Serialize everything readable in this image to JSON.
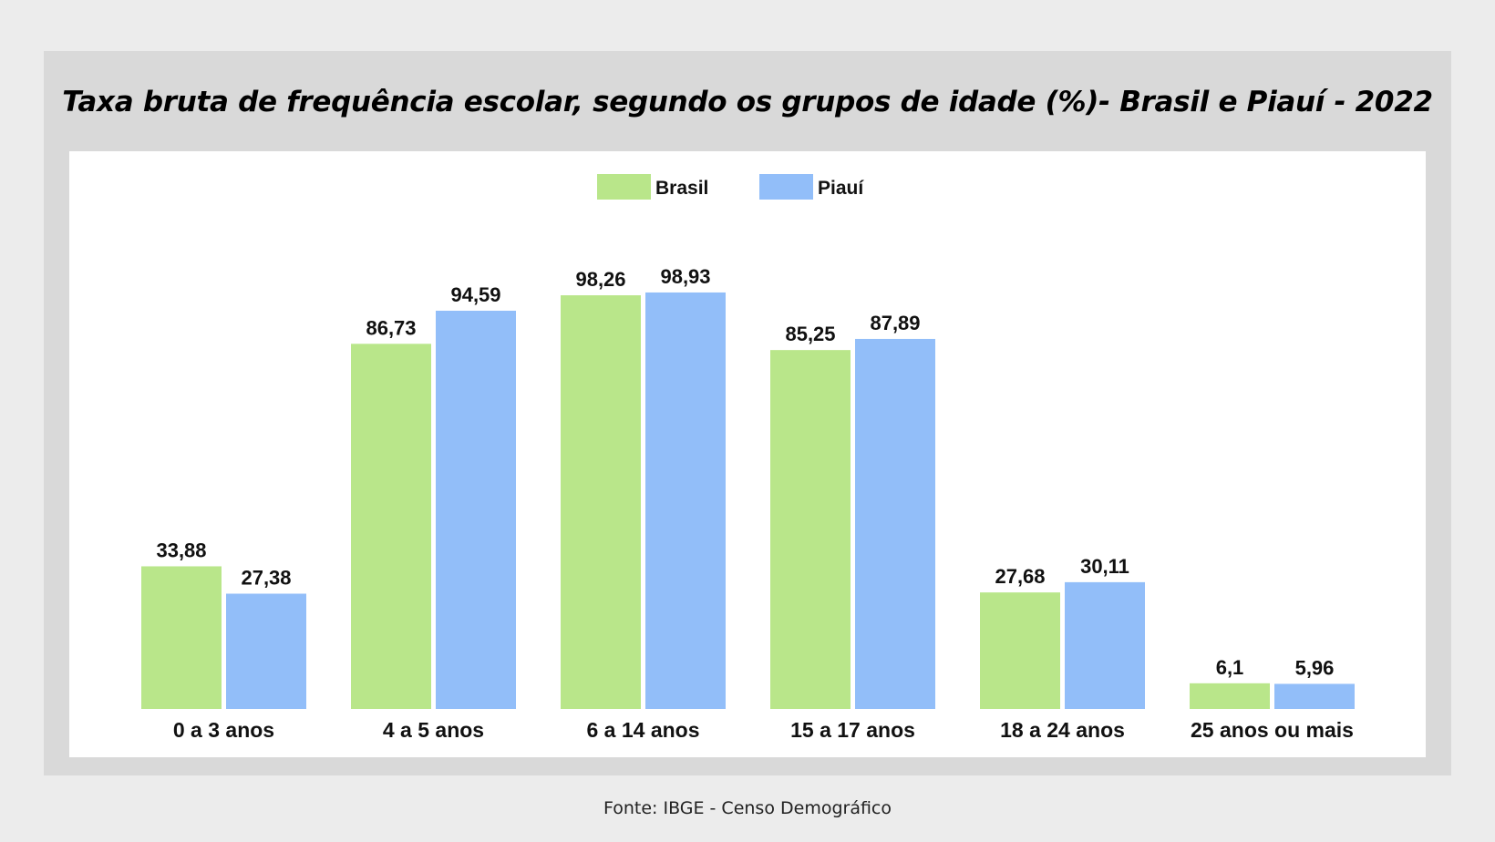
{
  "chart_data": {
    "type": "bar",
    "title": "Taxa bruta de frequência escolar, segundo os grupos de idade (%)- Brasil e Piauí - 2022",
    "categories": [
      "0 a 3 anos",
      "4 a 5 anos",
      "6 a 14 anos",
      "15 a 17 anos",
      "18 a 24 anos",
      "25 anos ou mais"
    ],
    "series": [
      {
        "name": "Brasil",
        "color": "#b9e68a",
        "values": [
          33.88,
          86.73,
          98.26,
          85.25,
          27.68,
          6.1
        ],
        "labels": [
          "33,88",
          "86,73",
          "98,26",
          "85,25",
          "27,68",
          "6,1"
        ]
      },
      {
        "name": "Piauí",
        "color": "#92bef9",
        "values": [
          27.38,
          94.59,
          98.93,
          87.89,
          30.11,
          5.96
        ],
        "labels": [
          "27,38",
          "94,59",
          "98,93",
          "87,89",
          "30,11",
          "5,96"
        ]
      }
    ],
    "ylim": [
      0,
      100
    ],
    "grid": false,
    "legend": "top-center",
    "xlabel": "",
    "ylabel": ""
  },
  "source": "Fonte: IBGE -  Censo Demográfico"
}
